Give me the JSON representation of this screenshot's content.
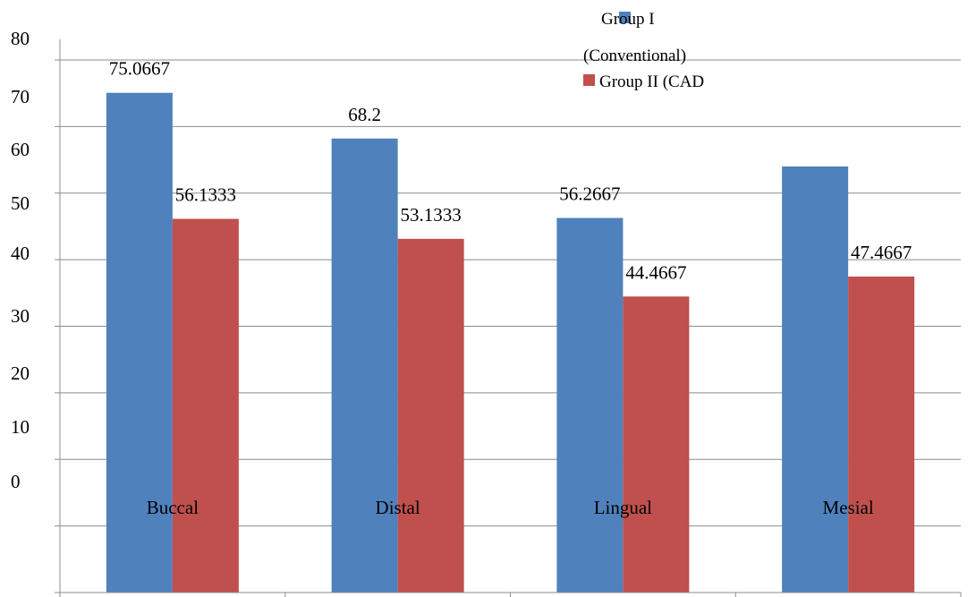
{
  "chart_data": {
    "type": "bar",
    "categories": [
      "Buccal",
      "Distal",
      "Lingual",
      "Mesial"
    ],
    "series": [
      {
        "name": "Group I (Conventional)",
        "color": "#4f81bd",
        "values": [
          75.0667,
          68.2,
          56.2667,
          64.0
        ]
      },
      {
        "name": "Group II (CAD",
        "color": "#c0504d",
        "values": [
          56.1333,
          53.1333,
          44.4667,
          47.4667
        ]
      }
    ],
    "value_labels": [
      [
        "75.0667",
        "68.2",
        "56.2667",
        ""
      ],
      [
        "56.1333",
        "53.1333",
        "44.4667",
        "47.4667"
      ]
    ],
    "y_ticks": [
      "80",
      "70",
      "60",
      "50",
      "40",
      "30",
      "20",
      "10",
      "0"
    ],
    "ylim": [
      0,
      80
    ],
    "grid": true,
    "legend_position": "top-right",
    "legend": {
      "group1_line1": "Group I",
      "group1_line2": "(Conventional)",
      "group2": "Group II (CAD"
    }
  }
}
